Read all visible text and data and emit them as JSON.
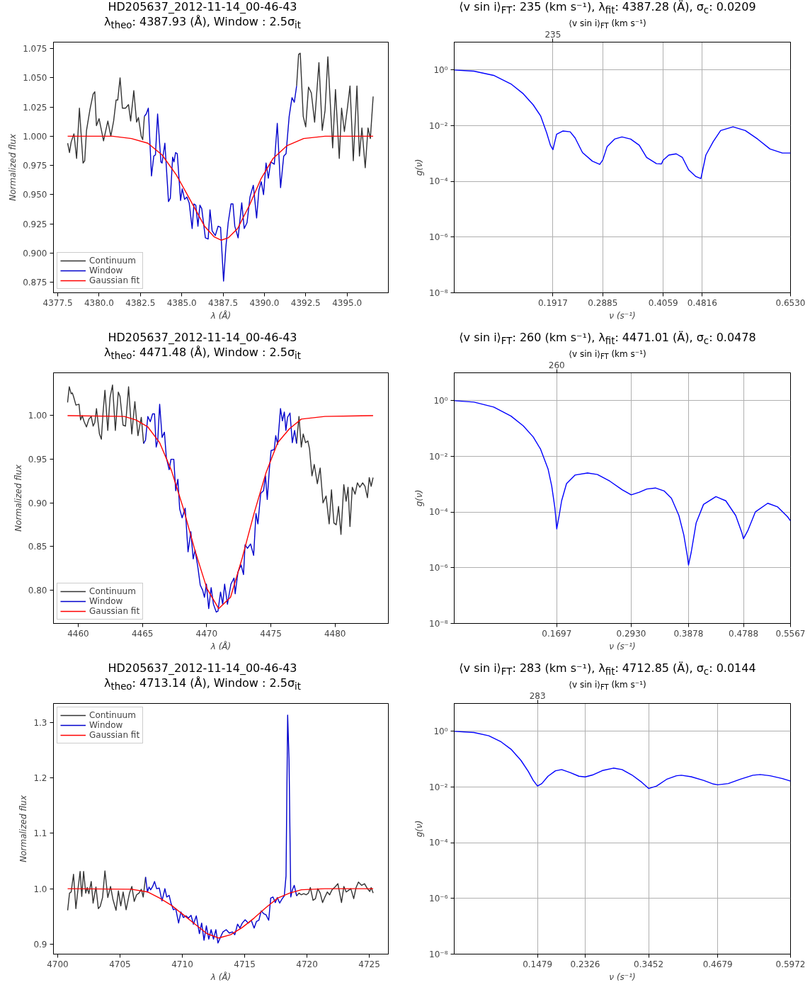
{
  "chart_data": [
    {
      "type": "line",
      "title": "HD205637_2012-11-14_00-46-43",
      "subtitle": "λ$_{theo}$: 4387.93 (Å),  Window :  2.5σ$_{it}$",
      "xlabel": "λ (Å)",
      "ylabel": "Normalized flux",
      "legend": "bottom left",
      "grid": false,
      "xlim": [
        4377.24,
        4397.5
      ],
      "ylim": [
        0.866,
        1.0805
      ],
      "xticks": [
        4377.5,
        {
          "value": 4380,
          "label": "4380.0"
        },
        4382.5,
        {
          "value": 4385,
          "label": "4385.0"
        },
        4387.5,
        {
          "value": 4390,
          "label": "4390.0"
        },
        4392.5,
        {
          "value": 4395,
          "label": "4395.0"
        }
      ],
      "yticks": [
        0.875,
        {
          "value": 0.9,
          "label": "0.900"
        },
        0.925,
        {
          "value": 0.95,
          "label": "0.950"
        },
        0.975,
        {
          "value": 1,
          "label": "1.000"
        },
        1.025,
        {
          "value": 1.05,
          "label": "1.050"
        },
        1.075
      ],
      "series": [
        {
          "name": "Continuum",
          "color": "#333333",
          "x": [
            4378.1,
            4378.21,
            4378.31,
            4378.48,
            4378.64,
            4378.81,
            4379.03,
            4379.13,
            4379.24,
            4379.45,
            4379.64,
            4379.74,
            4379.84,
            4380.0,
            4380.27,
            4380.53,
            4380.71,
            4380.88,
            4381.03,
            4381.13,
            4381.27,
            4381.41,
            4381.6,
            4381.78,
            4381.91,
            4382.1,
            4382.27,
            4382.38,
            4382.55,
            4382.64,
            4382.74,
            4387.0,
            4391.95,
            4392.07,
            4392.17,
            4392.35,
            4392.5,
            4392.67,
            4392.84,
            4393.04,
            4393.3,
            4393.5,
            4393.67,
            4393.84,
            4394.13,
            4394.3,
            4394.53,
            4394.67,
            4394.84,
            4395.03,
            4395.18,
            4395.38,
            4395.6,
            4395.75,
            4395.9,
            4396.1,
            4396.27,
            4396.41,
            4396.58
          ],
          "values": [
            0.994,
            0.986,
            0.995,
            1.002,
            0.981,
            1.024,
            0.977,
            0.979,
            1.005,
            1.023,
            1.036,
            1.038,
            1.009,
            1.015,
            0.996,
            1.013,
            1.0,
            1.013,
            1.031,
            1.031,
            1.05,
            1.024,
            1.024,
            1.027,
            1.013,
            1.039,
            1.012,
            1.016,
            1.0,
            0.997,
            1.017,
            null,
            1.043,
            1.07,
            1.071,
            1.017,
            1.008,
            1.042,
            1.037,
            1.012,
            1.063,
            1.005,
            1.022,
            1.068,
            0.99,
            1.04,
            0.981,
            1.024,
            1.004,
            1.025,
            1.043,
            0.979,
            1.043,
            0.983,
            1.007,
            0.973,
            1.007,
            0.998,
            1.034
          ]
        },
        {
          "name": "Window",
          "color": "#0000cc",
          "x": [
            4382.74,
            4382.85,
            4382.98,
            4383.17,
            4383.31,
            4383.41,
            4383.54,
            4383.74,
            4383.81,
            4383.98,
            4384.2,
            4384.31,
            4384.45,
            4384.53,
            4384.63,
            4384.73,
            4384.93,
            4385.03,
            4385.17,
            4385.31,
            4385.45,
            4385.63,
            4385.74,
            4385.85,
            4385.98,
            4386.1,
            4386.21,
            4386.43,
            4386.6,
            4386.71,
            4386.84,
            4387.03,
            4387.2,
            4387.35,
            4387.53,
            4387.67,
            4387.81,
            4387.98,
            4388.1,
            4388.21,
            4388.41,
            4388.63,
            4388.78,
            4388.95,
            4389.13,
            4389.33,
            4389.53,
            4389.67,
            4389.81,
            4389.95,
            4390.1,
            4390.24,
            4390.38,
            4390.6,
            4390.78,
            4390.98,
            4391.17,
            4391.31,
            4391.5,
            4391.67,
            4391.81,
            4391.95
          ],
          "values": [
            1.017,
            1.019,
            1.024,
            0.966,
            0.983,
            0.984,
            1.019,
            0.978,
            0.977,
            0.994,
            0.944,
            0.947,
            0.982,
            0.978,
            0.986,
            0.985,
            0.945,
            0.955,
            0.946,
            0.948,
            0.943,
            0.921,
            0.942,
            0.941,
            0.923,
            0.941,
            0.938,
            0.913,
            0.912,
            0.937,
            0.919,
            0.915,
            0.923,
            0.922,
            0.876,
            0.905,
            0.926,
            0.942,
            0.942,
            0.923,
            0.913,
            0.943,
            0.921,
            0.926,
            0.948,
            0.958,
            0.93,
            0.954,
            0.961,
            0.95,
            0.977,
            0.964,
            0.978,
            0.976,
            1.011,
            0.956,
            0.983,
            0.985,
            1.017,
            1.033,
            1.029,
            1.043
          ]
        },
        {
          "name": "Gaussian fit",
          "color": "#ff0000",
          "x": [
            4378.1,
            4380.81,
            4381.95,
            4382.95,
            4383.81,
            4384.67,
            4385.53,
            4386.38,
            4386.95,
            4387.38,
            4387.81,
            4388.38,
            4389.1,
            4389.81,
            4390.53,
            4391.38,
            4392.38,
            4393.67,
            4396.58
          ],
          "values": [
            1.0,
            1.0,
            0.998,
            0.994,
            0.984,
            0.967,
            0.945,
            0.923,
            0.914,
            0.911,
            0.913,
            0.921,
            0.941,
            0.964,
            0.981,
            0.992,
            0.998,
            1.0,
            1.0
          ]
        }
      ]
    },
    {
      "type": "line",
      "title": "⟨v sin i⟩$_{FT}$: 235 (km s⁻¹), λ$_{fit}$: 4387.28 (Ä), σ$_{c}$: 0.0209",
      "x2label": "⟨v sin i⟩$_{FT}$ (km s⁻¹)",
      "xlabel": "ν (s⁻¹)",
      "ylabel": "g(ν)",
      "log": "y",
      "grid": true,
      "xlim": [
        0,
        0.653
      ],
      "ylim": [
        1e-08,
        10
      ],
      "xticks": [
        0.1917,
        0.2885,
        0.4059,
        0.4816,
        {
          "value": 0.653,
          "label": "0.6530"
        }
      ],
      "annotations": [
        "235"
      ],
      "yticks": [
        {
          "value": 1,
          "label": "10⁰"
        },
        {
          "value": 0.01,
          "label": "10⁻²"
        },
        {
          "value": 0.0001,
          "label": "10⁻⁴"
        },
        {
          "value": 1e-06,
          "label": "10⁻⁶"
        },
        {
          "value": 1e-08,
          "label": "10⁻⁸"
        }
      ],
      "series": [
        {
          "color": "#0000ff",
          "x": [
            0,
            0.0383,
            0.0766,
            0.1102,
            0.1341,
            0.1533,
            0.1677,
            0.1796,
            0.1868,
            0.1917,
            0.1988,
            0.2108,
            0.2251,
            0.2347,
            0.2491,
            0.2683,
            0.2826,
            0.2885,
            0.297,
            0.3114,
            0.3257,
            0.3425,
            0.3593,
            0.3736,
            0.3928,
            0.4024,
            0.4059,
            0.4167,
            0.4311,
            0.4431,
            0.4551,
            0.4694,
            0.479,
            0.4816,
            0.4886,
            0.503,
            0.5173,
            0.5413,
            0.5652,
            0.5892,
            0.6131,
            0.6371,
            0.653
          ],
          "values": [
            1.0,
            0.904,
            0.64,
            0.315,
            0.14,
            0.0562,
            0.0226,
            0.00547,
            0.00199,
            0.00138,
            0.00494,
            0.00643,
            0.00605,
            0.00365,
            0.00108,
            0.000531,
            0.000408,
            0.000588,
            0.00179,
            0.0033,
            0.00395,
            0.0033,
            0.00199,
            0.00072,
            0.000434,
            0.000425,
            0.000588,
            0.000881,
            0.000976,
            0.00072,
            0.000261,
            0.000148,
            0.000126,
            0.000213,
            0.000881,
            0.00269,
            0.0067,
            0.00908,
            0.0067,
            0.0033,
            0.00146,
            0.00104,
            0.00104
          ]
        }
      ]
    },
    {
      "type": "line",
      "title": "HD205637_2012-11-14_00-46-43",
      "subtitle": "λ$_{theo}$: 4471.48 (Å),  Window :  2.5σ$_{it}$",
      "xlabel": "λ (Å)",
      "ylabel": "Normalized flux",
      "legend": "bottom left",
      "grid": false,
      "xlim": [
        4458.07,
        4484.15
      ],
      "ylim": [
        0.762,
        1.049
      ],
      "xticks": [
        4460,
        4465,
        4470,
        4475,
        4480
      ],
      "yticks": [
        {
          "value": 0.8,
          "label": "0.80"
        },
        0.85,
        {
          "value": 0.9,
          "label": "0.90"
        },
        0.95,
        {
          "value": 1,
          "label": "1.00"
        }
      ],
      "series": [
        {
          "name": "Continuum",
          "color": "#333333",
          "x": [
            4459.17,
            4459.3,
            4459.45,
            4459.54,
            4459.63,
            4459.82,
            4460.06,
            4460.18,
            4460.31,
            4460.46,
            4460.64,
            4460.83,
            4461.01,
            4461.16,
            4461.29,
            4461.42,
            4461.65,
            4461.8,
            4461.93,
            4462.08,
            4462.3,
            4462.48,
            4462.67,
            4462.89,
            4463.12,
            4463.25,
            4463.49,
            4463.68,
            4463.92,
            4464.17,
            4464.41,
            4464.65,
            4464.91,
            4465.09,
            4471.0,
            4477.0,
            4477.19,
            4477.37,
            4477.52,
            4477.7,
            4477.88,
            4478.01,
            4478.2,
            4478.38,
            4478.62,
            4478.84,
            4479.06,
            4479.3,
            4479.54,
            4479.72,
            4479.91,
            4480.09,
            4480.27,
            4480.46,
            4480.68,
            4480.86,
            4481.01,
            4481.16,
            4481.34,
            4481.56,
            4481.74,
            4481.93,
            4482.15,
            4482.33,
            4482.52,
            4482.66,
            4482.81,
            4482.96
          ],
          "values": [
            1.015,
            1.033,
            1.025,
            1.026,
            1.022,
            1.012,
            1.013,
            0.995,
            1.0,
            0.993,
            0.987,
            0.996,
            0.999,
            0.988,
            0.992,
            1.008,
            0.979,
            0.973,
            1.003,
            1.029,
            0.983,
            1.021,
            1.035,
            0.983,
            1.027,
            1.022,
            0.989,
            0.988,
            1.033,
            0.979,
            1.016,
            0.977,
            0.998,
            0.968,
            null,
            0.968,
            0.999,
            0.964,
            0.979,
            0.969,
            0.971,
            0.962,
            0.931,
            0.944,
            0.922,
            0.94,
            0.9,
            0.908,
            0.876,
            0.915,
            0.877,
            0.875,
            0.896,
            0.864,
            0.921,
            0.902,
            0.918,
            0.873,
            0.918,
            0.91,
            0.923,
            0.918,
            0.923,
            0.919,
            0.906,
            0.929,
            0.919,
            0.929
          ]
        },
        {
          "name": "Window",
          "color": "#0000cc",
          "x": [
            4465.09,
            4465.24,
            4465.42,
            4465.61,
            4465.79,
            4465.94,
            4466.07,
            4466.19,
            4466.34,
            4466.53,
            4466.71,
            4466.86,
            4467.08,
            4467.22,
            4467.44,
            4467.59,
            4467.76,
            4467.9,
            4468.09,
            4468.33,
            4468.55,
            4468.77,
            4468.95,
            4469.1,
            4469.32,
            4469.5,
            4469.69,
            4469.83,
            4469.98,
            4470.16,
            4470.35,
            4470.53,
            4470.75,
            4470.88,
            4471.08,
            4471.25,
            4471.4,
            4471.62,
            4471.89,
            4472.13,
            4472.22,
            4472.44,
            4472.68,
            4472.87,
            4472.99,
            4473.18,
            4473.42,
            4473.66,
            4473.84,
            4473.99,
            4474.21,
            4474.43,
            4474.58,
            4474.72,
            4474.89,
            4475.02,
            4475.26,
            4475.38,
            4475.53,
            4475.75,
            4475.9,
            4476.05,
            4476.17,
            4476.3,
            4476.49,
            4476.67,
            4476.85,
            4477.0
          ],
          "values": [
            0.968,
            0.972,
            0.999,
            0.993,
            1.002,
            1.002,
            0.964,
            0.971,
            1.013,
            0.975,
            0.981,
            0.952,
            0.938,
            0.95,
            0.95,
            0.914,
            0.927,
            0.893,
            0.883,
            0.894,
            0.844,
            0.867,
            0.836,
            0.846,
            0.826,
            0.806,
            0.8,
            0.792,
            0.807,
            0.779,
            0.803,
            0.784,
            0.775,
            0.776,
            0.798,
            0.784,
            0.807,
            0.784,
            0.807,
            0.814,
            0.796,
            0.821,
            0.829,
            0.818,
            0.852,
            0.848,
            0.853,
            0.84,
            0.888,
            0.876,
            0.911,
            0.914,
            0.931,
            0.904,
            0.94,
            0.96,
            0.961,
            0.977,
            0.967,
            1.008,
            0.994,
            1.004,
            0.983,
            0.998,
            1.003,
            0.969,
            0.983,
            0.968
          ]
        },
        {
          "name": "Gaussian fit",
          "color": "#ff0000",
          "x": [
            4459.17,
            4463.58,
            4464.5,
            4465.42,
            4466.34,
            4467.26,
            4468.18,
            4469.1,
            4470.02,
            4470.94,
            4471.86,
            4472.77,
            4473.69,
            4474.61,
            4475.53,
            4476.45,
            4477.37,
            4479.21,
            4482.96
          ],
          "values": [
            1.0,
            0.999,
            0.995,
            0.987,
            0.969,
            0.937,
            0.894,
            0.845,
            0.802,
            0.779,
            0.792,
            0.837,
            0.888,
            0.934,
            0.969,
            0.985,
            0.996,
            0.999,
            1.0
          ]
        }
      ]
    },
    {
      "type": "line",
      "title": "⟨v sin i⟩$_{FT}$: 260 (km s⁻¹), λ$_{fit}$: 4471.01 (Ä), σ$_{c}$: 0.0478",
      "x2label": "⟨v sin i⟩$_{FT}$ (km s⁻¹)",
      "xlabel": "ν (s⁻¹)",
      "ylabel": "g(ν)",
      "log": "y",
      "grid": true,
      "xlim": [
        0,
        0.5567
      ],
      "ylim": [
        1e-08,
        10
      ],
      "xticks": [
        0.1697,
        {
          "value": 0.293,
          "label": "0.2930"
        },
        0.3878,
        0.4788,
        0.5567
      ],
      "annotations": [
        "260"
      ],
      "yticks": [
        {
          "value": 1,
          "label": "10⁰"
        },
        {
          "value": 0.01,
          "label": "10⁻²"
        },
        {
          "value": 0.0001,
          "label": "10⁻⁴"
        },
        {
          "value": 1e-06,
          "label": "10⁻⁶"
        },
        {
          "value": 1e-08,
          "label": "10⁻⁸"
        }
      ],
      "series": [
        {
          "color": "#0000ff",
          "x": [
            0,
            0.0327,
            0.0654,
            0.094,
            0.1144,
            0.1308,
            0.143,
            0.1553,
            0.1614,
            0.1667,
            0.1697,
            0.1737,
            0.1778,
            0.1859,
            0.2002,
            0.2207,
            0.237,
            0.2575,
            0.2779,
            0.293,
            0.3065,
            0.3188,
            0.3331,
            0.3474,
            0.3596,
            0.3719,
            0.3801,
            0.3862,
            0.3878,
            0.3923,
            0.4005,
            0.4127,
            0.4332,
            0.4495,
            0.4659,
            0.4761,
            0.4788,
            0.4863,
            0.4986,
            0.519,
            0.5354,
            0.5517,
            0.5567
          ],
          "values": [
            1.0,
            0.885,
            0.59,
            0.279,
            0.124,
            0.0497,
            0.018,
            0.00356,
            0.000859,
            0.000138,
            2.47e-05,
            7.53e-05,
            0.000254,
            0.00105,
            0.00214,
            0.00252,
            0.00223,
            0.00129,
            0.000634,
            0.000414,
            0.000518,
            0.000673,
            0.00073,
            0.000573,
            0.000311,
            7.53e-05,
            1.49e-05,
            2.39e-06,
            1.25e-06,
            3.59e-06,
            4.09e-05,
            0.000188,
            0.000359,
            0.000254,
            7.53e-05,
            1.82e-05,
            1.1e-05,
            2.23e-05,
            0.000102,
            0.000207,
            0.000153,
            6.81e-05,
            4.82e-05
          ]
        }
      ]
    },
    {
      "type": "line",
      "title": "HD205637_2012-11-14_00-46-43",
      "subtitle": "λ$_{theo}$: 4713.14 (Å),  Window :  2.5σ$_{it}$",
      "xlabel": "λ (Å)",
      "ylabel": "Normalized flux",
      "legend": "top left",
      "grid": false,
      "xlim": [
        4699.66,
        4726.53
      ],
      "ylim": [
        0.882,
        1.334
      ],
      "xticks": [
        4700,
        4705,
        4710,
        4715,
        4720,
        4725
      ],
      "yticks": [
        0.9,
        {
          "value": 1,
          "label": "1.0"
        },
        1.1,
        1.2,
        1.3
      ],
      "series": [
        {
          "name": "Continuum",
          "color": "#333333",
          "x": [
            4700.8,
            4700.95,
            4701.08,
            4701.27,
            4701.46,
            4701.65,
            4701.8,
            4701.93,
            4702.08,
            4702.25,
            4702.37,
            4702.5,
            4702.69,
            4702.84,
            4703.07,
            4703.26,
            4703.41,
            4703.6,
            4703.79,
            4704.02,
            4704.24,
            4704.43,
            4704.68,
            4704.87,
            4705.06,
            4705.25,
            4705.49,
            4705.76,
            4705.95,
            4706.14,
            4706.33,
            4706.52,
            4706.71,
            4706.86,
            4707.05,
            4713.0,
            4719.17,
            4719.36,
            4719.55,
            4719.74,
            4719.93,
            4720.12,
            4720.27,
            4720.49,
            4720.68,
            4720.87,
            4721.06,
            4721.25,
            4721.44,
            4721.63,
            4721.82,
            4722.01,
            4722.29,
            4722.48,
            4722.77,
            4722.96,
            4723.15,
            4723.34,
            4723.52,
            4723.75,
            4723.94,
            4724.13,
            4724.38,
            4724.62,
            4724.85,
            4725.04,
            4725.15,
            4725.31
          ],
          "values": [
            0.961,
            0.992,
            0.994,
            1.026,
            0.964,
            1.004,
            1.031,
            0.986,
            1.031,
            0.992,
            1.002,
            0.991,
            1.013,
            0.974,
            1.003,
            0.964,
            0.968,
            0.984,
            1.032,
            0.984,
            1.004,
            0.981,
            0.961,
            0.996,
            0.969,
            0.994,
            0.962,
            0.992,
            1.004,
            0.977,
            0.989,
            0.992,
            0.999,
            0.985,
            1.021,
            null,
            0.987,
            0.992,
            0.989,
            0.991,
            0.989,
            0.992,
            1.002,
            0.979,
            0.982,
            1.0,
            0.992,
            0.975,
            0.985,
            0.994,
            0.989,
            0.998,
            1.004,
            1.009,
            0.975,
            1.004,
            0.994,
            0.997,
            1.0,
            0.982,
            1.002,
            1.012,
            1.006,
            1.009,
            1.0,
            0.995,
            1.002,
            0.992
          ]
        },
        {
          "name": "Window",
          "color": "#0000cc",
          "x": [
            4707.05,
            4707.2,
            4707.33,
            4707.46,
            4707.62,
            4707.77,
            4707.94,
            4708.15,
            4708.37,
            4708.6,
            4708.75,
            4708.94,
            4709.09,
            4709.28,
            4709.47,
            4709.7,
            4709.89,
            4710.08,
            4710.3,
            4710.49,
            4710.7,
            4710.89,
            4711.12,
            4711.37,
            4711.55,
            4711.74,
            4711.93,
            4712.12,
            4712.31,
            4712.5,
            4712.69,
            4712.86,
            4713.11,
            4713.26,
            4713.52,
            4713.77,
            4714.02,
            4714.21,
            4714.43,
            4714.62,
            4714.81,
            4715.04,
            4715.29,
            4715.53,
            4715.76,
            4715.95,
            4716.14,
            4716.33,
            4716.52,
            4716.71,
            4716.93,
            4717.09,
            4717.27,
            4717.46,
            4717.62,
            4717.81,
            4717.99,
            4718.18,
            4718.32,
            4718.45,
            4718.56,
            4718.7,
            4718.83,
            4718.98,
            4719.17
          ],
          "values": [
            1.021,
            0.994,
            1.003,
            0.998,
            1.004,
            1.013,
            1.0,
            1.001,
            0.978,
            1.0,
            0.985,
            0.988,
            0.974,
            0.962,
            0.964,
            0.938,
            0.958,
            0.948,
            0.951,
            0.947,
            0.952,
            0.936,
            0.951,
            0.919,
            0.938,
            0.907,
            0.933,
            0.909,
            0.926,
            0.909,
            0.926,
            0.902,
            0.915,
            0.922,
            0.926,
            0.92,
            0.922,
            0.917,
            0.936,
            0.929,
            0.938,
            0.944,
            0.938,
            0.943,
            0.929,
            0.941,
            0.943,
            0.96,
            0.955,
            0.953,
            0.943,
            0.983,
            0.985,
            0.975,
            0.984,
            0.974,
            0.981,
            0.987,
            1.023,
            1.313,
            1.234,
            0.985,
            0.998,
            1.006,
            0.987
          ]
        },
        {
          "name": "Gaussian fit",
          "color": "#ff0000",
          "x": [
            4700.8,
            4705.91,
            4707.24,
            4708.18,
            4709.13,
            4710.08,
            4711.02,
            4711.97,
            4712.92,
            4713.87,
            4714.81,
            4715.76,
            4716.71,
            4717.65,
            4718.6,
            4719.55,
            4721.44,
            4725.31
          ],
          "values": [
            1.0,
            0.999,
            0.994,
            0.983,
            0.97,
            0.953,
            0.936,
            0.919,
            0.911,
            0.917,
            0.93,
            0.947,
            0.966,
            0.983,
            0.992,
            0.998,
            1.0,
            1.0
          ]
        }
      ]
    },
    {
      "type": "line",
      "title": "⟨v sin i⟩$_{FT}$: 283 (km s⁻¹), λ$_{fit}$: 4712.85 (Ä), σ$_{c}$: 0.0144",
      "x2label": "⟨v sin i⟩$_{FT}$ (km s⁻¹)",
      "xlabel": "ν (s⁻¹)",
      "ylabel": "g(ν)",
      "log": "y",
      "grid": true,
      "xlim": [
        0,
        0.5972
      ],
      "ylim": [
        1e-08,
        10
      ],
      "xticks": [
        0.1479,
        0.2326,
        0.3452,
        0.4679,
        0.5972
      ],
      "annotations": [
        "283"
      ],
      "yticks": [
        {
          "value": 1,
          "label": "10⁰"
        },
        {
          "value": 0.01,
          "label": "10⁻²"
        },
        {
          "value": 0.0001,
          "label": "10⁻⁴"
        },
        {
          "value": 1e-06,
          "label": "10⁻⁶"
        },
        {
          "value": 1e-08,
          "label": "10⁻⁸"
        }
      ],
      "series": [
        {
          "color": "#0000ff",
          "x": [
            0,
            0.0351,
            0.0614,
            0.0833,
            0.1008,
            0.1184,
            0.1315,
            0.1403,
            0.1479,
            0.1556,
            0.1666,
            0.1797,
            0.1907,
            0.206,
            0.2214,
            0.2326,
            0.2455,
            0.263,
            0.2827,
            0.2981,
            0.3156,
            0.3332,
            0.3452,
            0.3594,
            0.377,
            0.3945,
            0.4033,
            0.4208,
            0.4427,
            0.4603,
            0.4679,
            0.4866,
            0.5085,
            0.5304,
            0.5435,
            0.5611,
            0.583,
            0.5972
          ],
          "values": [
            1.0,
            0.904,
            0.694,
            0.418,
            0.228,
            0.0912,
            0.0366,
            0.0173,
            0.0108,
            0.0133,
            0.0244,
            0.0381,
            0.0423,
            0.0331,
            0.0244,
            0.023,
            0.027,
            0.0389,
            0.0477,
            0.0423,
            0.027,
            0.0147,
            0.00885,
            0.0108,
            0.0188,
            0.0254,
            0.0265,
            0.0234,
            0.0173,
            0.0128,
            0.012,
            0.0133,
            0.0191,
            0.0265,
            0.0281,
            0.0254,
            0.02,
            0.0163
          ]
        }
      ]
    }
  ]
}
